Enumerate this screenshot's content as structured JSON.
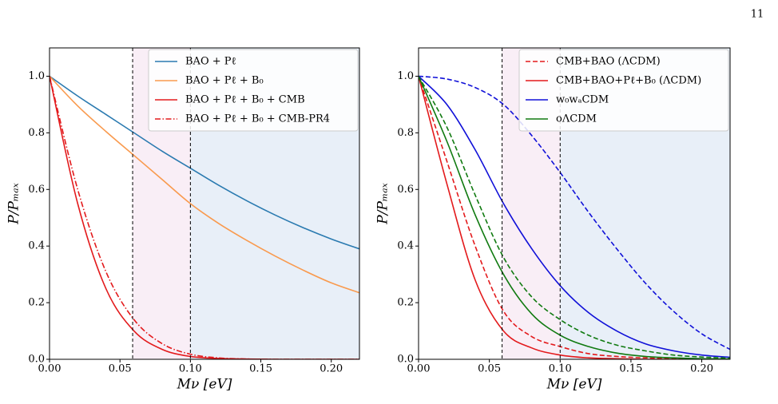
{
  "page_number": "11",
  "chart_data": [
    {
      "type": "line",
      "xlabel": "Mν [eV]",
      "ylabel": "P/Pₘₐₓ",
      "x": [
        0,
        0.02,
        0.04,
        0.06,
        0.08,
        0.1,
        0.12,
        0.14,
        0.16,
        0.18,
        0.2,
        0.22
      ],
      "xlim": [
        0,
        0.22
      ],
      "ylim": [
        0,
        1.1
      ],
      "xticks": [
        {
          "value": 0,
          "label": "0.00"
        },
        {
          "value": 0.05,
          "label": "0.05"
        },
        {
          "value": 0.1,
          "label": "0.10"
        },
        {
          "value": 0.15,
          "label": "0.15"
        },
        {
          "value": 0.2,
          "label": "0.20"
        }
      ],
      "yticks": [
        {
          "value": 0,
          "label": "0.0"
        },
        0.2,
        0.4,
        0.6,
        0.8,
        {
          "value": 1,
          "label": "1.0"
        }
      ],
      "bands": [
        {
          "from": 0.059,
          "to": 0.1,
          "color": "#f9eef6"
        },
        {
          "from": 0.1,
          "to": 0.22,
          "color": "#e8eff8"
        }
      ],
      "vlines": [
        0.059,
        0.1
      ],
      "legend": "upper right",
      "series": [
        {
          "name": "BAO + Pℓ",
          "color": "#2a7ab0",
          "dash": "solid",
          "values": [
            1,
            0.93,
            0.865,
            0.8,
            0.735,
            0.675,
            0.615,
            0.56,
            0.51,
            0.465,
            0.425,
            0.39
          ]
        },
        {
          "name": "BAO + Pℓ + B₀",
          "color": "#f99a4e",
          "dash": "solid",
          "values": [
            1,
            0.895,
            0.805,
            0.72,
            0.635,
            0.55,
            0.48,
            0.42,
            0.365,
            0.315,
            0.27,
            0.235
          ]
        },
        {
          "name": "BAO + Pℓ + B₀ + CMB",
          "color": "#e31a1c",
          "dash": "solid",
          "values": [
            1,
            0.55,
            0.25,
            0.1,
            0.035,
            0.01,
            0.003,
            0.001,
            0,
            0,
            0,
            0
          ]
        },
        {
          "name": "BAO + Pℓ + B₀ + CMB-PR4",
          "color": "#e31a1c",
          "dash": "dashdot",
          "values": [
            1,
            0.6,
            0.31,
            0.14,
            0.055,
            0.018,
            0.005,
            0.001,
            0,
            0,
            0,
            0
          ]
        }
      ]
    },
    {
      "type": "line",
      "xlabel": "Mν [eV]",
      "ylabel": "P/Pₘₐₓ",
      "x": [
        0,
        0.02,
        0.04,
        0.06,
        0.08,
        0.1,
        0.12,
        0.14,
        0.16,
        0.18,
        0.2,
        0.22
      ],
      "xlim": [
        0,
        0.22
      ],
      "ylim": [
        0,
        1.1
      ],
      "xticks": [
        {
          "value": 0,
          "label": "0.00"
        },
        {
          "value": 0.05,
          "label": "0.05"
        },
        {
          "value": 0.1,
          "label": "0.10"
        },
        {
          "value": 0.15,
          "label": "0.15"
        },
        {
          "value": 0.2,
          "label": "0.20"
        }
      ],
      "yticks": [
        {
          "value": 0,
          "label": "0.0"
        },
        0.2,
        0.4,
        0.6,
        0.8,
        {
          "value": 1,
          "label": "1.0"
        }
      ],
      "bands": [
        {
          "from": 0.059,
          "to": 0.1,
          "color": "#f9eef6"
        },
        {
          "from": 0.1,
          "to": 0.22,
          "color": "#e8eff8"
        }
      ],
      "vlines": [
        0.059,
        0.1
      ],
      "legend": "upper right",
      "series": [
        {
          "name": "CMB+BAO (ΛCDM)",
          "color": "#e31a1c",
          "dash": "dashed",
          "values": [
            1,
            0.7,
            0.4,
            0.17,
            0.08,
            0.045,
            0.02,
            0.01,
            0.005,
            0.002,
            0.001,
            0
          ]
        },
        {
          "name": "CMB+BAO+Pℓ+B₀ (ΛCDM)",
          "color": "#e31a1c",
          "dash": "solid",
          "values": [
            1,
            0.62,
            0.28,
            0.1,
            0.04,
            0.015,
            0.005,
            0.002,
            0,
            0,
            0,
            0
          ]
        },
        {
          "name": "w₀wₐCDM",
          "color": "#1010d8",
          "dash": "solid",
          "values": [
            1,
            0.9,
            0.74,
            0.55,
            0.39,
            0.26,
            0.165,
            0.1,
            0.055,
            0.03,
            0.015,
            0.007
          ]
        },
        {
          "name": "oΛCDM",
          "color": "#107a10",
          "dash": "solid",
          "values": [
            1,
            0.77,
            0.51,
            0.3,
            0.16,
            0.085,
            0.045,
            0.022,
            0.01,
            0.005,
            0.002,
            0.001
          ]
        },
        {
          "color": "#1010d8",
          "dash": "dashed",
          "values": [
            1,
            0.99,
            0.96,
            0.9,
            0.79,
            0.66,
            0.52,
            0.39,
            0.27,
            0.17,
            0.09,
            0.035
          ]
        },
        {
          "color": "#107a10",
          "dash": "dashed",
          "values": [
            1,
            0.82,
            0.58,
            0.36,
            0.22,
            0.14,
            0.085,
            0.05,
            0.03,
            0.015,
            0.008,
            0.004
          ]
        }
      ]
    }
  ]
}
